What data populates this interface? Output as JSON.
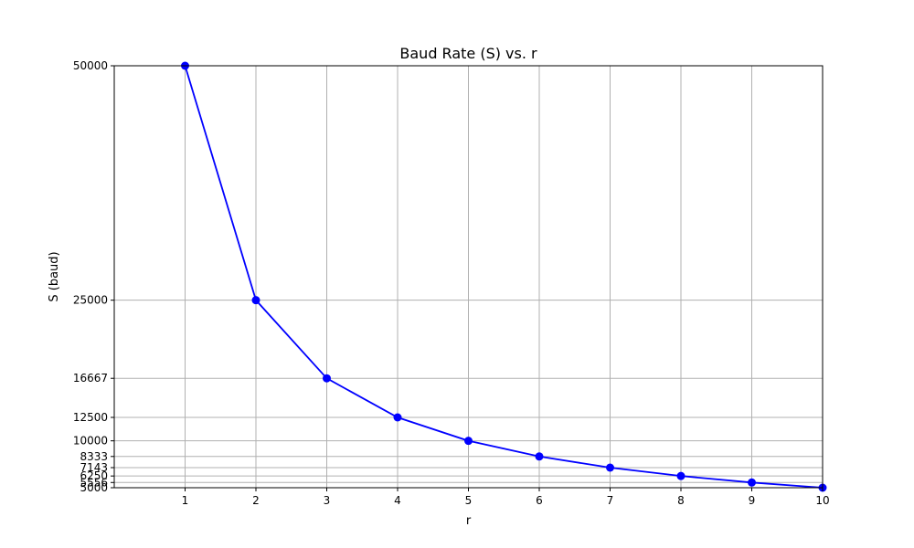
{
  "chart_data": {
    "type": "line",
    "title": "Baud Rate (S) vs. r",
    "xlabel": "r",
    "ylabel": "S (baud)",
    "x": [
      1,
      2,
      3,
      4,
      5,
      6,
      7,
      8,
      9,
      10
    ],
    "series": [
      {
        "values": [
          50000,
          25000,
          16667,
          12500,
          10000,
          8333,
          7143,
          6250,
          5556,
          5000
        ],
        "color": "#0000ff",
        "marker": "circle"
      }
    ],
    "xlim": [
      0,
      10
    ],
    "ylim": [
      5000,
      50000
    ],
    "xticks": [
      1,
      2,
      3,
      4,
      5,
      6,
      7,
      8,
      9,
      10
    ],
    "yticks": [
      5000,
      5556,
      6250,
      7143,
      8333,
      10000,
      12500,
      16667,
      25000,
      50000
    ],
    "ytick_labels": [
      "5000",
      "5556",
      "6250",
      "7143",
      "8333",
      "10000",
      "12500",
      "16667",
      "25000",
      "50000"
    ],
    "grid": true
  }
}
